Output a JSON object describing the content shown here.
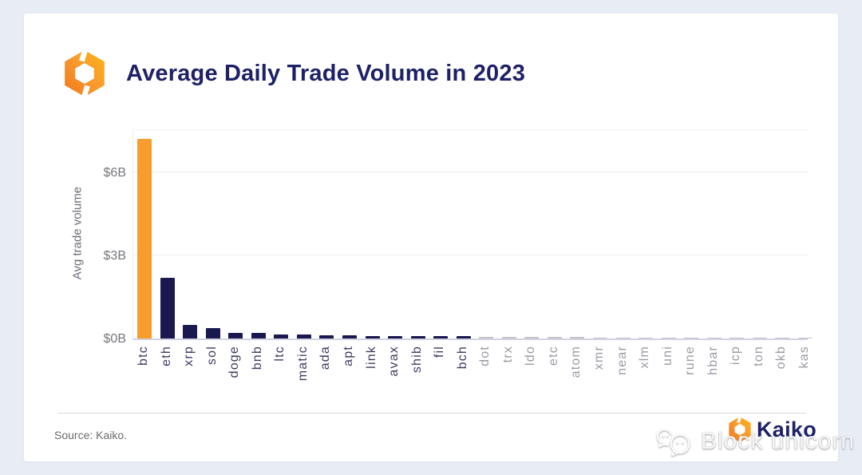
{
  "header": {
    "title": "Average Daily Trade Volume in 2023"
  },
  "chart_data": {
    "type": "bar",
    "title": "Average Daily Trade Volume in 2023",
    "xlabel": "",
    "ylabel": "Avg trade volume",
    "ylim": [
      0,
      7.6
    ],
    "grid": "horizontal",
    "legend": "none",
    "yticks": [
      {
        "label": "$0B",
        "value": 0
      },
      {
        "label": "$3B",
        "value": 3
      },
      {
        "label": "$6B",
        "value": 6
      }
    ],
    "categories": [
      "btc",
      "eth",
      "xrp",
      "sol",
      "doge",
      "bnb",
      "ltc",
      "matic",
      "ada",
      "apt",
      "link",
      "avax",
      "shib",
      "fil",
      "bch",
      "dot",
      "trx",
      "ldo",
      "etc",
      "atom",
      "xmr",
      "near",
      "xlm",
      "uni",
      "rune",
      "hbar",
      "icp",
      "ton",
      "okb",
      "kas"
    ],
    "values": [
      7.2,
      2.2,
      0.49,
      0.38,
      0.2,
      0.2,
      0.14,
      0.14,
      0.12,
      0.12,
      0.1,
      0.1,
      0.09,
      0.09,
      0.09,
      0.06,
      0.06,
      0.05,
      0.05,
      0.05,
      0.04,
      0.04,
      0.04,
      0.04,
      0.04,
      0.04,
      0.03,
      0.03,
      0.03,
      0.02
    ],
    "bar_colors": [
      "#F89C2E",
      "#191950",
      "#191950",
      "#191950",
      "#191950",
      "#191950",
      "#191950",
      "#191950",
      "#191950",
      "#191950",
      "#191950",
      "#191950",
      "#191950",
      "#191950",
      "#191950",
      "#C3C3CE",
      "#C3C3CE",
      "#C3C3CE",
      "#C3C3CE",
      "#C3C3CE",
      "#C3C3CE",
      "#C3C3CE",
      "#C3C3CE",
      "#C3C3CE",
      "#C3C3CE",
      "#C3C3CE",
      "#C3C3CE",
      "#C3C3CE",
      "#C3C3CE",
      "#C3C3CE"
    ],
    "label_colors": [
      "#3c3c64",
      "#3c3c64",
      "#3c3c64",
      "#3c3c64",
      "#3c3c64",
      "#3c3c64",
      "#3c3c64",
      "#3c3c64",
      "#3c3c64",
      "#3c3c64",
      "#3c3c64",
      "#3c3c64",
      "#3c3c64",
      "#3c3c64",
      "#3c3c64",
      "#9b9ba6",
      "#9b9ba6",
      "#9b9ba6",
      "#9b9ba6",
      "#9b9ba6",
      "#9b9ba6",
      "#9b9ba6",
      "#9b9ba6",
      "#9b9ba6",
      "#9b9ba6",
      "#9b9ba6",
      "#9b9ba6",
      "#9b9ba6",
      "#9b9ba6",
      "#9b9ba6"
    ]
  },
  "footer": {
    "source": "Source: Kaiko.",
    "brand": "Kaiko"
  },
  "watermark": {
    "text": "Block unicorn"
  },
  "colors": {
    "accent_orange": "#F89C2E",
    "bar_navy": "#191950",
    "bar_muted": "#C3C3CE",
    "title_navy": "#1E2167",
    "axis_gray": "#77777D",
    "page_background": "#E8EDF5"
  }
}
